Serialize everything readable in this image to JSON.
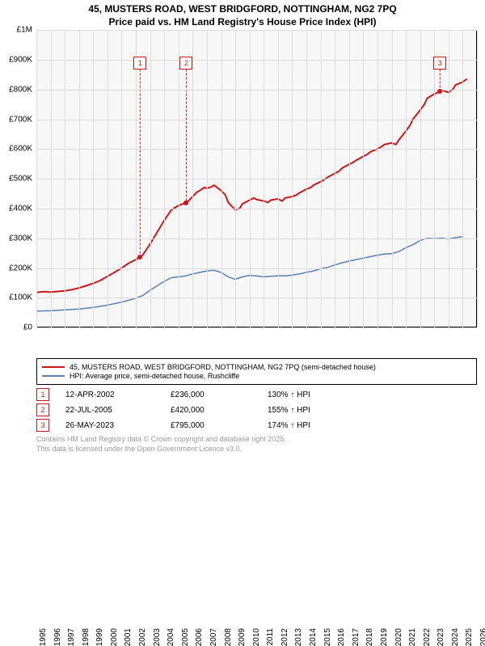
{
  "title": {
    "line1": "45, MUSTERS ROAD, WEST BRIDGFORD, NOTTINGHAM, NG2 7PQ",
    "line2": "Price paid vs. HM Land Registry's House Price Index (HPI)"
  },
  "chart": {
    "type": "line",
    "background_color": "#f7f7f7",
    "grid_color": "#dcdcdc",
    "border_color": "#000000",
    "x": {
      "min": 1995,
      "max": 2026,
      "tick_step": 1
    },
    "y": {
      "min": 0,
      "max": 1000000,
      "ticks": [
        {
          "v": 0,
          "label": "£0"
        },
        {
          "v": 100000,
          "label": "£100K"
        },
        {
          "v": 200000,
          "label": "£200K"
        },
        {
          "v": 300000,
          "label": "£300K"
        },
        {
          "v": 400000,
          "label": "£400K"
        },
        {
          "v": 500000,
          "label": "£500K"
        },
        {
          "v": 600000,
          "label": "£600K"
        },
        {
          "v": 700000,
          "label": "£700K"
        },
        {
          "v": 800000,
          "label": "£800K"
        },
        {
          "v": 900000,
          "label": "£900K"
        },
        {
          "v": 1000000,
          "label": "£1M"
        }
      ]
    },
    "series": [
      {
        "name": "property",
        "label": "45, MUSTERS ROAD, WEST BRIDGFORD, NOTTINGHAM, NG2 7PQ (semi-detached house)",
        "color": "#cf1515",
        "width": 2,
        "points": [
          [
            1995,
            118000
          ],
          [
            1995.5,
            120000
          ],
          [
            1996,
            119000
          ],
          [
            1996.5,
            121000
          ],
          [
            1997,
            123000
          ],
          [
            1997.5,
            127000
          ],
          [
            1998,
            133000
          ],
          [
            1998.5,
            140000
          ],
          [
            1999,
            148000
          ],
          [
            1999.5,
            158000
          ],
          [
            2000,
            172000
          ],
          [
            2000.5,
            185000
          ],
          [
            2001,
            200000
          ],
          [
            2001.5,
            216000
          ],
          [
            2002,
            228000
          ],
          [
            2002.3,
            236000
          ],
          [
            2002.5,
            245000
          ],
          [
            2003,
            280000
          ],
          [
            2003.5,
            320000
          ],
          [
            2004,
            360000
          ],
          [
            2004.5,
            395000
          ],
          [
            2005,
            410000
          ],
          [
            2005.3,
            415000
          ],
          [
            2005.55,
            420000
          ],
          [
            2005.7,
            425000
          ],
          [
            2006,
            440000
          ],
          [
            2006.3,
            455000
          ],
          [
            2006.5,
            460000
          ],
          [
            2006.8,
            470000
          ],
          [
            2007,
            468000
          ],
          [
            2007.3,
            472000
          ],
          [
            2007.5,
            478000
          ],
          [
            2008,
            460000
          ],
          [
            2008.3,
            445000
          ],
          [
            2008.5,
            420000
          ],
          [
            2008.8,
            405000
          ],
          [
            2009,
            395000
          ],
          [
            2009.3,
            400000
          ],
          [
            2009.5,
            415000
          ],
          [
            2010,
            428000
          ],
          [
            2010.3,
            435000
          ],
          [
            2010.5,
            430000
          ],
          [
            2011,
            425000
          ],
          [
            2011.3,
            420000
          ],
          [
            2011.5,
            428000
          ],
          [
            2012,
            432000
          ],
          [
            2012.3,
            425000
          ],
          [
            2012.5,
            435000
          ],
          [
            2013,
            440000
          ],
          [
            2013.3,
            445000
          ],
          [
            2013.5,
            452000
          ],
          [
            2014,
            465000
          ],
          [
            2014.3,
            470000
          ],
          [
            2014.5,
            478000
          ],
          [
            2015,
            490000
          ],
          [
            2015.3,
            498000
          ],
          [
            2015.5,
            505000
          ],
          [
            2016,
            518000
          ],
          [
            2016.3,
            525000
          ],
          [
            2016.5,
            535000
          ],
          [
            2017,
            548000
          ],
          [
            2017.3,
            555000
          ],
          [
            2017.5,
            562000
          ],
          [
            2018,
            575000
          ],
          [
            2018.3,
            582000
          ],
          [
            2018.5,
            590000
          ],
          [
            2019,
            600000
          ],
          [
            2019.3,
            608000
          ],
          [
            2019.5,
            615000
          ],
          [
            2020,
            620000
          ],
          [
            2020.3,
            615000
          ],
          [
            2020.5,
            630000
          ],
          [
            2021,
            660000
          ],
          [
            2021.3,
            680000
          ],
          [
            2021.5,
            700000
          ],
          [
            2022,
            730000
          ],
          [
            2022.3,
            750000
          ],
          [
            2022.5,
            770000
          ],
          [
            2023,
            785000
          ],
          [
            2023.3,
            790000
          ],
          [
            2023.4,
            795000
          ],
          [
            2023.5,
            798000
          ],
          [
            2024,
            790000
          ],
          [
            2024.3,
            800000
          ],
          [
            2024.5,
            815000
          ],
          [
            2025,
            825000
          ],
          [
            2025.3,
            835000
          ]
        ]
      },
      {
        "name": "hpi",
        "label": "HPI: Average price, semi-detached house, Rushcliffe",
        "color": "#5a7fb5",
        "width": 1.5,
        "points": [
          [
            1995,
            55000
          ],
          [
            1996,
            56000
          ],
          [
            1997,
            59000
          ],
          [
            1998,
            62000
          ],
          [
            1999,
            67000
          ],
          [
            2000,
            75000
          ],
          [
            2001,
            85000
          ],
          [
            2002,
            98000
          ],
          [
            2002.5,
            108000
          ],
          [
            2003,
            125000
          ],
          [
            2003.5,
            140000
          ],
          [
            2004,
            155000
          ],
          [
            2004.5,
            167000
          ],
          [
            2005,
            170000
          ],
          [
            2005.5,
            173000
          ],
          [
            2006,
            180000
          ],
          [
            2006.5,
            185000
          ],
          [
            2007,
            190000
          ],
          [
            2007.5,
            192000
          ],
          [
            2008,
            185000
          ],
          [
            2008.5,
            170000
          ],
          [
            2009,
            162000
          ],
          [
            2009.5,
            170000
          ],
          [
            2010,
            175000
          ],
          [
            2010.5,
            173000
          ],
          [
            2011,
            170000
          ],
          [
            2011.5,
            172000
          ],
          [
            2012,
            174000
          ],
          [
            2012.5,
            173000
          ],
          [
            2013,
            176000
          ],
          [
            2013.5,
            180000
          ],
          [
            2014,
            185000
          ],
          [
            2014.5,
            190000
          ],
          [
            2015,
            197000
          ],
          [
            2015.5,
            202000
          ],
          [
            2016,
            210000
          ],
          [
            2016.5,
            217000
          ],
          [
            2017,
            223000
          ],
          [
            2017.5,
            228000
          ],
          [
            2018,
            233000
          ],
          [
            2018.5,
            238000
          ],
          [
            2019,
            243000
          ],
          [
            2019.5,
            247000
          ],
          [
            2020,
            248000
          ],
          [
            2020.5,
            255000
          ],
          [
            2021,
            268000
          ],
          [
            2021.5,
            278000
          ],
          [
            2022,
            292000
          ],
          [
            2022.5,
            300000
          ],
          [
            2023,
            298000
          ],
          [
            2023.5,
            300000
          ],
          [
            2024,
            297000
          ],
          [
            2024.5,
            302000
          ],
          [
            2025,
            305000
          ]
        ]
      }
    ],
    "markers": [
      {
        "n": "1",
        "x": 2002.3,
        "y": 236000,
        "label_y": 890000
      },
      {
        "n": "2",
        "x": 2005.55,
        "y": 420000,
        "label_y": 890000
      },
      {
        "n": "3",
        "x": 2023.4,
        "y": 795000,
        "label_y": 890000
      }
    ]
  },
  "legend": {
    "items": [
      {
        "key": "property"
      },
      {
        "key": "hpi"
      }
    ]
  },
  "sales": [
    {
      "n": "1",
      "date": "12-APR-2002",
      "price": "£236,000",
      "hpi": "130% ↑ HPI",
      "color": "#cf1515"
    },
    {
      "n": "2",
      "date": "22-JUL-2005",
      "price": "£420,000",
      "hpi": "155% ↑ HPI",
      "color": "#cf1515"
    },
    {
      "n": "3",
      "date": "26-MAY-2023",
      "price": "£795,000",
      "hpi": "174% ↑ HPI",
      "color": "#cf1515"
    }
  ],
  "footer": {
    "line1": "Contains HM Land Registry data © Crown copyright and database right 2025.",
    "line2": "This data is licensed under the Open Government Licence v3.0."
  }
}
